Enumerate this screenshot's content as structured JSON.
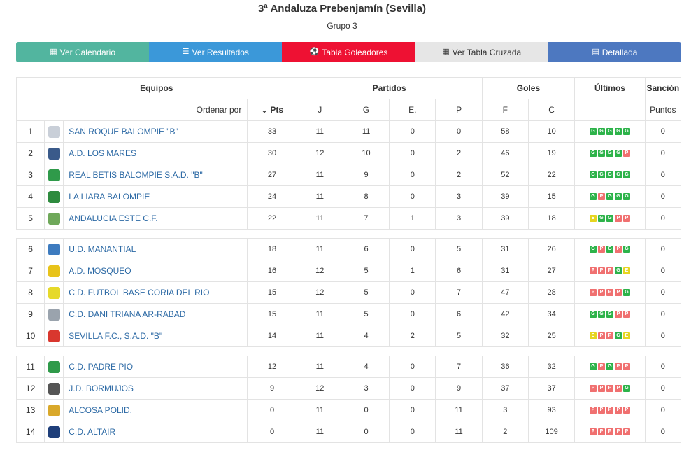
{
  "header": {
    "title": "3ª Andaluza Prebenjamín (Sevilla)",
    "subtitle": "Grupo 3"
  },
  "buttons": [
    {
      "label": "Ver Calendario",
      "icon": "calendar-icon",
      "glyph": "▦"
    },
    {
      "label": "Ver Resultados",
      "icon": "list-icon",
      "glyph": "☰"
    },
    {
      "label": "Tabla Goleadores",
      "icon": "soccer-ball-icon",
      "glyph": "⚽"
    },
    {
      "label": "Ver Tabla Cruzada",
      "icon": "table-icon",
      "glyph": "▦"
    },
    {
      "label": "Detallada",
      "icon": "detail-list-icon",
      "glyph": "▤"
    }
  ],
  "table": {
    "headers": {
      "equipos": "Equipos",
      "partidos": "Partidos",
      "goles": "Goles",
      "ultimos": "Últimos",
      "sancion": "Sanción",
      "ordenar": "Ordenar por",
      "pts": "Pts",
      "j": "J",
      "g": "G",
      "e": "E.",
      "p": "P",
      "f": "F",
      "c": "C",
      "puntos": "Puntos"
    },
    "colors": {
      "win": "#2db34a",
      "loss": "#f07070",
      "draw": "#e6d520"
    },
    "groups": [
      [
        {
          "pos": "1",
          "team": "SAN ROQUE BALOMPIE \"B\"",
          "crest": "#c9cfd8",
          "pts": "33",
          "j": "11",
          "g": "11",
          "e": "0",
          "p": "0",
          "f": "58",
          "c": "10",
          "last": [
            "G",
            "G",
            "G",
            "G",
            "G"
          ],
          "sancion": "0"
        },
        {
          "pos": "2",
          "team": "A.D. LOS MARES",
          "crest": "#3a5a8a",
          "pts": "30",
          "j": "12",
          "g": "10",
          "e": "0",
          "p": "2",
          "f": "46",
          "c": "19",
          "last": [
            "G",
            "G",
            "G",
            "G",
            "P"
          ],
          "sancion": "0"
        },
        {
          "pos": "3",
          "team": "REAL BETIS BALOMPIE S.A.D. \"B\"",
          "crest": "#2f9a4a",
          "pts": "27",
          "j": "11",
          "g": "9",
          "e": "0",
          "p": "2",
          "f": "52",
          "c": "22",
          "last": [
            "G",
            "G",
            "G",
            "G",
            "G"
          ],
          "sancion": "0"
        },
        {
          "pos": "4",
          "team": "LA LIARA BALOMPIE",
          "crest": "#2e8b3e",
          "pts": "24",
          "j": "11",
          "g": "8",
          "e": "0",
          "p": "3",
          "f": "39",
          "c": "15",
          "last": [
            "G",
            "P",
            "G",
            "G",
            "G"
          ],
          "sancion": "0"
        },
        {
          "pos": "5",
          "team": "ANDALUCIA ESTE C.F.",
          "crest": "#6fa85a",
          "pts": "22",
          "j": "11",
          "g": "7",
          "e": "1",
          "p": "3",
          "f": "39",
          "c": "18",
          "last": [
            "E",
            "G",
            "G",
            "P",
            "P"
          ],
          "sancion": "0"
        }
      ],
      [
        {
          "pos": "6",
          "team": "U.D. MANANTIAL",
          "crest": "#3d7bbf",
          "pts": "18",
          "j": "11",
          "g": "6",
          "e": "0",
          "p": "5",
          "f": "31",
          "c": "26",
          "last": [
            "G",
            "P",
            "G",
            "P",
            "G"
          ],
          "sancion": "0"
        },
        {
          "pos": "7",
          "team": "A.D. MOSQUEO",
          "crest": "#e8c31a",
          "pts": "16",
          "j": "12",
          "g": "5",
          "e": "1",
          "p": "6",
          "f": "31",
          "c": "27",
          "last": [
            "P",
            "P",
            "P",
            "G",
            "E"
          ],
          "sancion": "0"
        },
        {
          "pos": "8",
          "team": "C.D. FUTBOL BASE CORIA DEL RIO",
          "crest": "#e6d92a",
          "pts": "15",
          "j": "12",
          "g": "5",
          "e": "0",
          "p": "7",
          "f": "47",
          "c": "28",
          "last": [
            "P",
            "P",
            "P",
            "P",
            "G"
          ],
          "sancion": "0"
        },
        {
          "pos": "9",
          "team": "C.D. DANI TRIANA AR-RABAD",
          "crest": "#9aa3ad",
          "pts": "15",
          "j": "11",
          "g": "5",
          "e": "0",
          "p": "6",
          "f": "42",
          "c": "34",
          "last": [
            "G",
            "G",
            "G",
            "P",
            "P"
          ],
          "sancion": "0"
        },
        {
          "pos": "10",
          "team": "SEVILLA F.C., S.A.D. \"B\"",
          "crest": "#d9372e",
          "pts": "14",
          "j": "11",
          "g": "4",
          "e": "2",
          "p": "5",
          "f": "32",
          "c": "25",
          "last": [
            "E",
            "P",
            "P",
            "G",
            "E"
          ],
          "sancion": "0"
        }
      ],
      [
        {
          "pos": "11",
          "team": "C.D. PADRE PIO",
          "crest": "#2f9a4a",
          "pts": "12",
          "j": "11",
          "g": "4",
          "e": "0",
          "p": "7",
          "f": "36",
          "c": "32",
          "last": [
            "G",
            "P",
            "G",
            "P",
            "P"
          ],
          "sancion": "0"
        },
        {
          "pos": "12",
          "team": "J.D. BORMUJOS",
          "crest": "#555555",
          "pts": "9",
          "j": "12",
          "g": "3",
          "e": "0",
          "p": "9",
          "f": "37",
          "c": "37",
          "last": [
            "P",
            "P",
            "P",
            "P",
            "G"
          ],
          "sancion": "0"
        },
        {
          "pos": "13",
          "team": "ALCOSA POLID.",
          "crest": "#d9a82a",
          "pts": "0",
          "j": "11",
          "g": "0",
          "e": "0",
          "p": "11",
          "f": "3",
          "c": "93",
          "last": [
            "P",
            "P",
            "P",
            "P",
            "P"
          ],
          "sancion": "0"
        },
        {
          "pos": "14",
          "team": "C.D. ALTAIR",
          "crest": "#1f3f7a",
          "pts": "0",
          "j": "11",
          "g": "0",
          "e": "0",
          "p": "11",
          "f": "2",
          "c": "109",
          "last": [
            "P",
            "P",
            "P",
            "P",
            "P"
          ],
          "sancion": "0"
        }
      ]
    ]
  }
}
